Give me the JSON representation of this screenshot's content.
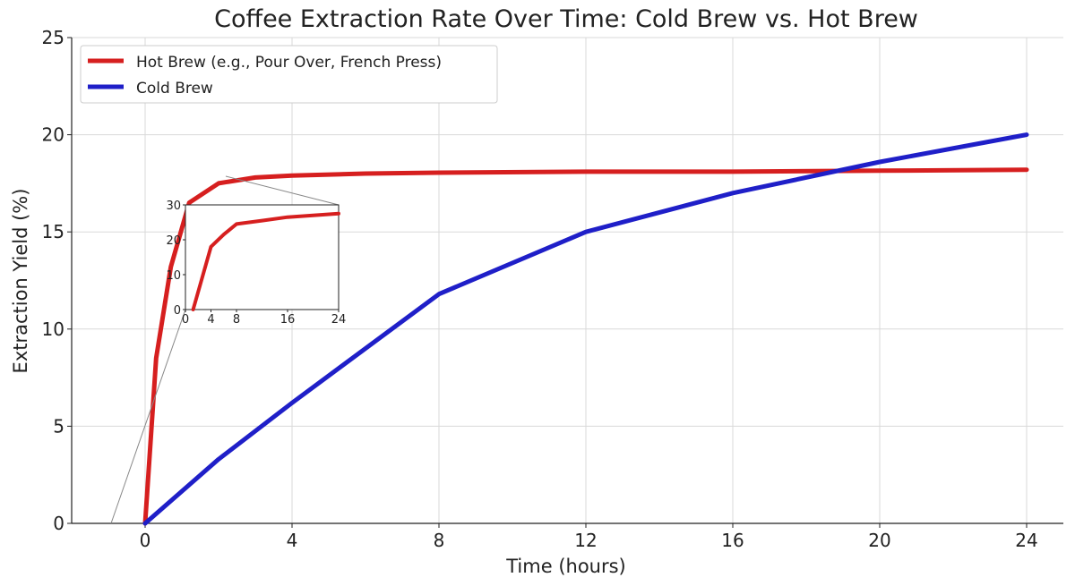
{
  "chart_data": {
    "type": "line",
    "title": "Coffee Extraction Rate Over Time: Cold Brew vs. Hot Brew",
    "xlabel": "Time (hours)",
    "ylabel": "Extraction Yield (%)",
    "xlim": [
      -2,
      25
    ],
    "ylim": [
      0,
      25
    ],
    "xticks": [
      0,
      4,
      8,
      12,
      16,
      20,
      24
    ],
    "yticks": [
      0,
      5,
      10,
      15,
      20,
      25
    ],
    "grid": true,
    "legend_position": "top-left",
    "series": [
      {
        "name": "Hot Brew (e.g., Pour Over, French Press)",
        "color": "#d61f1f",
        "x": [
          0,
          0.3,
          0.7,
          1.2,
          2,
          3,
          4,
          6,
          8,
          12,
          16,
          20,
          24
        ],
        "y": [
          0,
          8.5,
          13.2,
          16.5,
          17.5,
          17.8,
          17.9,
          18,
          18.05,
          18.1,
          18.1,
          18.15,
          18.2
        ]
      },
      {
        "name": "Cold Brew",
        "color": "#1f1fc8",
        "x": [
          0,
          2,
          4,
          8,
          12,
          16,
          20,
          24
        ],
        "y": [
          0,
          3.3,
          6.2,
          11.8,
          15.0,
          17.0,
          18.6,
          20.0
        ]
      }
    ],
    "inset": {
      "type": "line",
      "xlim": [
        0,
        24
      ],
      "ylim": [
        0,
        30
      ],
      "xticks": [
        0,
        4,
        8,
        16,
        24
      ],
      "yticks": [
        0,
        10,
        20,
        30
      ],
      "series": [
        {
          "color": "#d61f1f",
          "x": [
            1.2,
            4,
            6,
            8,
            12,
            16,
            20,
            24
          ],
          "y": [
            0,
            18,
            21.5,
            24.5,
            25.5,
            26.5,
            27,
            27.5
          ]
        }
      ]
    }
  }
}
